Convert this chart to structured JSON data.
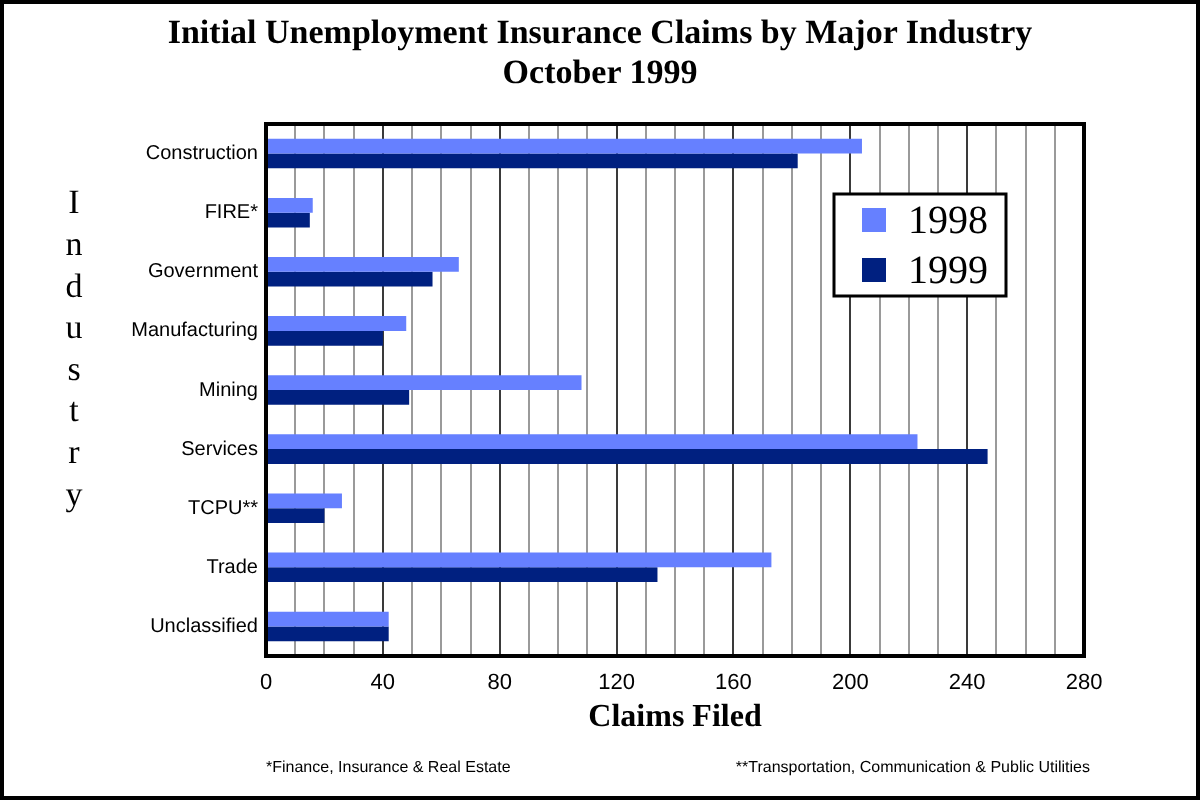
{
  "chart_data": {
    "type": "bar",
    "orientation": "horizontal",
    "title": "Initial Unemployment Insurance Claims by Major Industry",
    "subtitle": "October 1999",
    "xlabel": "Claims Filed",
    "ylabel": "Industry",
    "categories": [
      "Construction",
      "FIRE*",
      "Government",
      "Manufacturing",
      "Mining",
      "Services",
      "TCPU**",
      "Trade",
      "Unclassified"
    ],
    "series": [
      {
        "name": "1998",
        "color": "#6680ff",
        "values": [
          204,
          16,
          66,
          48,
          108,
          223,
          26,
          173,
          42
        ]
      },
      {
        "name": "1999",
        "color": "#002080",
        "values": [
          182,
          15,
          57,
          40,
          49,
          247,
          20,
          134,
          42
        ]
      }
    ],
    "xlim": [
      0,
      280
    ],
    "xticks": [
      0,
      {
        "value": 10,
        "label": null
      },
      {
        "value": 20,
        "label": null
      },
      {
        "value": 30,
        "label": null
      },
      40,
      {
        "value": 50,
        "label": null
      },
      {
        "value": 60,
        "label": null
      },
      {
        "value": 70,
        "label": null
      },
      80,
      {
        "value": 90,
        "label": null
      },
      {
        "value": 100,
        "label": null
      },
      {
        "value": 110,
        "label": null
      },
      120,
      {
        "value": 130,
        "label": null
      },
      {
        "value": 140,
        "label": null
      },
      {
        "value": 150,
        "label": null
      },
      160,
      {
        "value": 170,
        "label": null
      },
      {
        "value": 180,
        "label": null
      },
      {
        "value": 190,
        "label": null
      },
      200,
      {
        "value": 210,
        "label": null
      },
      {
        "value": 220,
        "label": null
      },
      {
        "value": 230,
        "label": null
      },
      240,
      {
        "value": 250,
        "label": null
      },
      {
        "value": 260,
        "label": null
      },
      {
        "value": 270,
        "label": null
      },
      280
    ],
    "grid": "x",
    "legend": "top right",
    "annotations": [
      "*Finance, Insurance & Real Estate",
      "**Transportation, Communication & Public Utilities"
    ]
  }
}
